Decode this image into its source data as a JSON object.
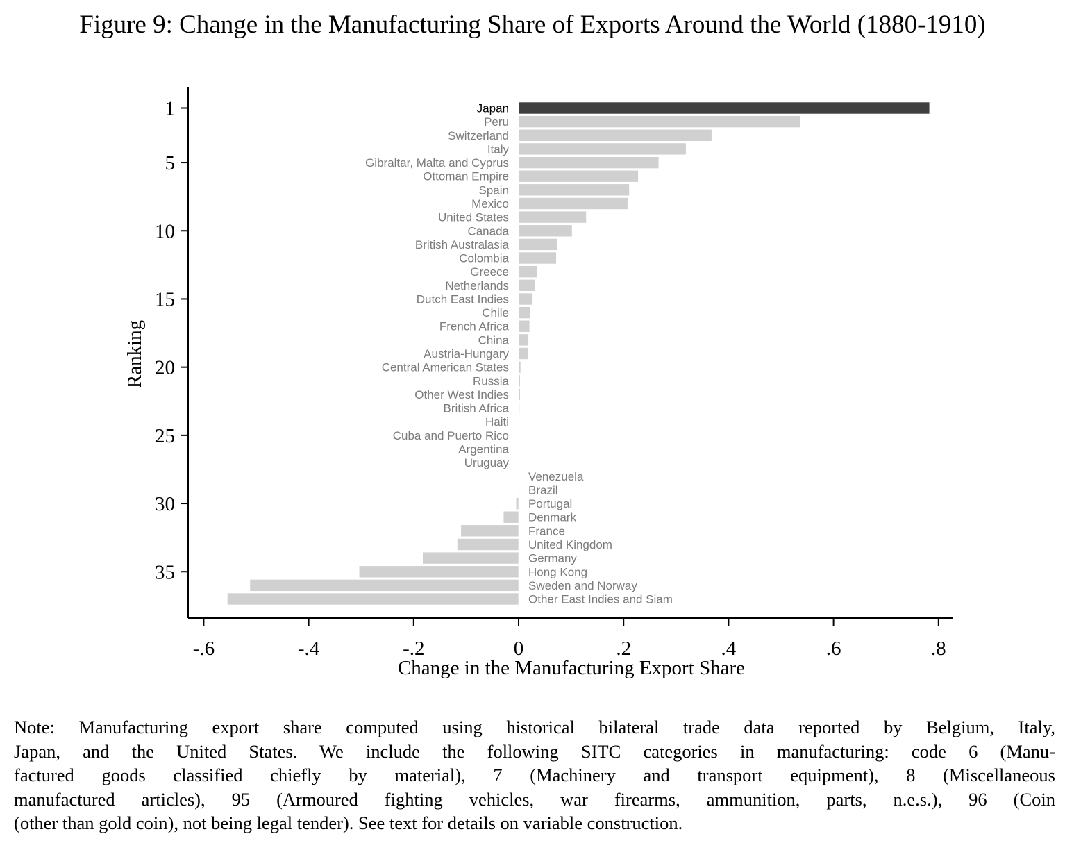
{
  "figure": {
    "title": "Figure 9: Change in the Manufacturing Share of Exports Around the World (1880-1910)",
    "note_lines": [
      "Note: Manufacturing export share computed using historical bilateral trade data reported by Belgium, Italy,",
      "Japan, and the United States.  We include the following SITC categories in manufacturing: code 6 (Manu-",
      "factured goods classified chiefly by material), 7 (Machinery and transport equipment), 8 (Miscellaneous",
      "manufactured articles), 95 (Armoured fighting vehicles, war firearms, ammunition, parts, n.e.s.), 96 (Coin",
      "(other than gold coin), not being legal tender). See text for details on variable construction."
    ]
  },
  "colors": {
    "highlight_bar": "#3f3f3f",
    "bar": "#d0d0d0",
    "label": "#7b7b7b",
    "highlight_label": "#000000",
    "axis": "#000000"
  },
  "chart_data": {
    "type": "bar",
    "orientation": "horizontal",
    "title": "Figure 9: Change in the Manufacturing Share of Exports Around the World (1880-1910)",
    "xlabel": "Change in the Manufacturing Export Share",
    "ylabel": "Ranking",
    "xlim": [
      -0.6,
      0.8
    ],
    "ylim": [
      1,
      37
    ],
    "x_ticks": [
      -0.6,
      -0.4,
      -0.2,
      0,
      0.2,
      0.4,
      0.6,
      0.8
    ],
    "x_tick_labels": [
      "-.6",
      "-.4",
      "-.2",
      "0",
      ".2",
      ".4",
      ".6",
      ".8"
    ],
    "y_ticks": [
      1,
      5,
      10,
      15,
      20,
      25,
      30,
      35
    ],
    "y_tick_labels": [
      "1",
      "5",
      "10",
      "15",
      "20",
      "25",
      "30",
      "35"
    ],
    "grid": false,
    "highlight": "Japan",
    "categories": [
      "Japan",
      "Peru",
      "Switzerland",
      "Italy",
      "Gibraltar, Malta and Cyprus",
      "Ottoman Empire",
      "Spain",
      "Mexico",
      "United States",
      "Canada",
      "British Australasia",
      "Colombia",
      "Greece",
      "Netherlands",
      "Dutch East Indies",
      "Chile",
      "French Africa",
      "China",
      "Austria-Hungary",
      "Central American States",
      "Russia",
      "Other West Indies",
      "British Africa",
      "Haiti",
      "Cuba and Puerto Rico",
      "Argentina",
      "Uruguay",
      "Venezuela",
      "Brazil",
      "Portugal",
      "Denmark",
      "France",
      "United Kingdom",
      "Germany",
      "Hong Kong",
      "Sweden and Norway",
      "Other East Indies and Siam"
    ],
    "values": [
      0.783,
      0.537,
      0.368,
      0.319,
      0.267,
      0.228,
      0.211,
      0.208,
      0.129,
      0.102,
      0.074,
      0.072,
      0.035,
      0.032,
      0.027,
      0.022,
      0.021,
      0.019,
      0.018,
      0.004,
      0.003,
      0.003,
      0.002,
      0.001,
      0.0005,
      0.0002,
      0.0001,
      -0.0001,
      -0.0005,
      -0.005,
      -0.029,
      -0.11,
      -0.117,
      -0.183,
      -0.304,
      -0.512,
      -0.555
    ]
  }
}
